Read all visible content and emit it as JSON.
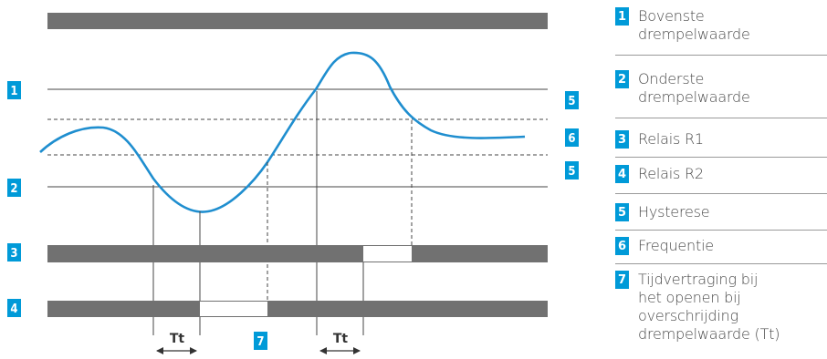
{
  "colors": {
    "accent": "#009ad8",
    "curve": "#1f8ecf",
    "bar_gray": "#717171",
    "line_dark": "#333333"
  },
  "diagram": {
    "labels": {
      "upper_threshold": "1",
      "lower_threshold": "2",
      "relay_r1": "3",
      "relay_r2": "4",
      "hysteresis_upper": "5",
      "frequency": "6",
      "hysteresis_lower": "5",
      "delay": "7",
      "tt_left": "Tt",
      "tt_right": "Tt"
    }
  },
  "legend": [
    {
      "num": "1",
      "label": "Bovenste\ndrempelwaarde"
    },
    {
      "num": "2",
      "label": "Onderste\ndrempelwaarde"
    },
    {
      "num": "3",
      "label": "Relais R1"
    },
    {
      "num": "4",
      "label": "Relais R2"
    },
    {
      "num": "5",
      "label": "Hysterese"
    },
    {
      "num": "6",
      "label": "Frequentie"
    },
    {
      "num": "7",
      "label": "Tijdvertraging bij\nhet openen bij\noverschrijding\ndrempelwaarde (Tt)"
    }
  ]
}
